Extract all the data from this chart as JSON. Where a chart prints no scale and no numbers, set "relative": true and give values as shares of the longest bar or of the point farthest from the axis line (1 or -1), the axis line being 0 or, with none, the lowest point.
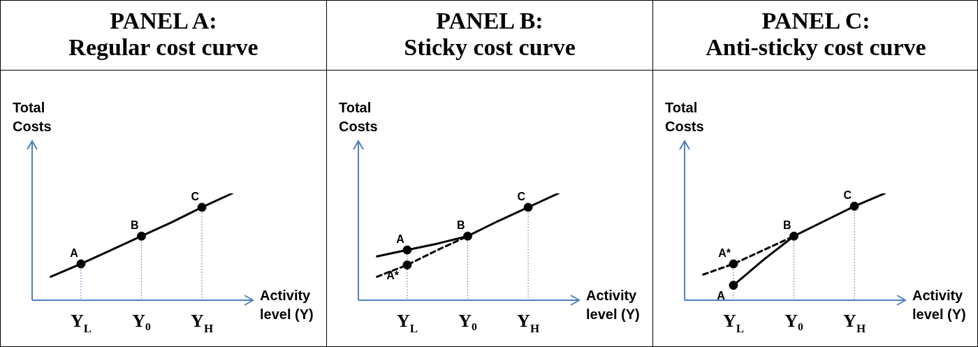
{
  "chart_data": [
    {
      "type": "line",
      "title": "PANEL A:",
      "subtitle": "Regular cost curve",
      "xlabel": "Activity level (Y)",
      "ylabel": "Total Costs",
      "relative": true,
      "categories": [
        null,
        "Y$_{L}$",
        null,
        "Y₀",
        null,
        "Y$_{H}$",
        null
      ],
      "series": [
        {
          "color": "#000000",
          "values": [
            0.22,
            0.34,
            0.47,
            0.6,
            0.73,
            0.87,
            1
          ]
        },
        {
          "type": "scatter",
          "color": "#000000",
          "marker": "circle",
          "x": [
            "Y$_{L}$",
            "Y₀",
            "Y$_{H}$"
          ],
          "values": [
            0.34,
            0.6,
            0.87
          ]
        }
      ],
      "annotations": [
        {
          "text": "A",
          "x": "Y$_{L}$",
          "y": 0.34
        },
        {
          "text": "B",
          "x": "Y₀",
          "y": 0.6
        },
        {
          "text": "C",
          "x": "Y$_{H}$",
          "y": 0.87
        }
      ]
    },
    {
      "type": "line",
      "title": "PANEL B:",
      "subtitle": "Sticky cost curve",
      "xlabel": "Activity level (Y)",
      "ylabel": "Total Costs",
      "relative": true,
      "categories": [
        null,
        "Y$_{L}$",
        null,
        "Y₀",
        null,
        "Y$_{H}$",
        null
      ],
      "series": [
        {
          "color": "#000000",
          "values": [
            0.41,
            0.47,
            0.53,
            0.6,
            0.74,
            0.87,
            1
          ]
        },
        {
          "color": "#000000",
          "line_style": "dashed",
          "values": [
            0.22,
            0.33,
            0.47,
            0.6,
            null,
            null,
            null
          ]
        },
        {
          "type": "scatter",
          "color": "#000000",
          "marker": "circle",
          "x": [
            "Y$_{L}$",
            "Y$_{L}$",
            "Y₀",
            "Y$_{H}$"
          ],
          "values": [
            0.47,
            0.33,
            0.6,
            0.87
          ]
        }
      ],
      "annotations": [
        {
          "text": "A",
          "x": "Y$_{L}$",
          "y": 0.47
        },
        {
          "text": "A*",
          "x": "Y$_{L}$",
          "y": 0.33
        },
        {
          "text": "B",
          "x": "Y₀",
          "y": 0.6
        },
        {
          "text": "C",
          "x": "Y$_{H}$",
          "y": 0.87
        }
      ]
    },
    {
      "type": "line",
      "title": "PANEL C:",
      "subtitle": "Anti-sticky cost curve",
      "xlabel": "Activity level (Y)",
      "ylabel": "Total Costs",
      "relative": true,
      "categories": [
        null,
        "Y$_{L}$",
        null,
        "Y₀",
        null,
        "Y$_{H}$",
        null
      ],
      "series": [
        {
          "color": "#000000",
          "values": [
            null,
            0.14,
            0.38,
            0.6,
            0.74,
            0.88,
            1
          ]
        },
        {
          "color": "#000000",
          "line_style": "dashed",
          "values": [
            0.24,
            0.34,
            0.47,
            0.6,
            null,
            null,
            null
          ]
        },
        {
          "type": "scatter",
          "color": "#000000",
          "marker": "circle",
          "x": [
            "Y$_{L}$",
            "Y$_{L}$",
            "Y₀",
            "Y$_{H}$"
          ],
          "values": [
            0.14,
            0.34,
            0.6,
            0.88
          ]
        }
      ],
      "annotations": [
        {
          "text": "A",
          "x": "Y$_{L}$",
          "y": 0.14
        },
        {
          "text": "A*",
          "x": "Y$_{L}$",
          "y": 0.34
        },
        {
          "text": "B",
          "x": "Y₀",
          "y": 0.6
        },
        {
          "text": "C",
          "x": "Y$_{H}$",
          "y": 0.88
        }
      ]
    }
  ]
}
